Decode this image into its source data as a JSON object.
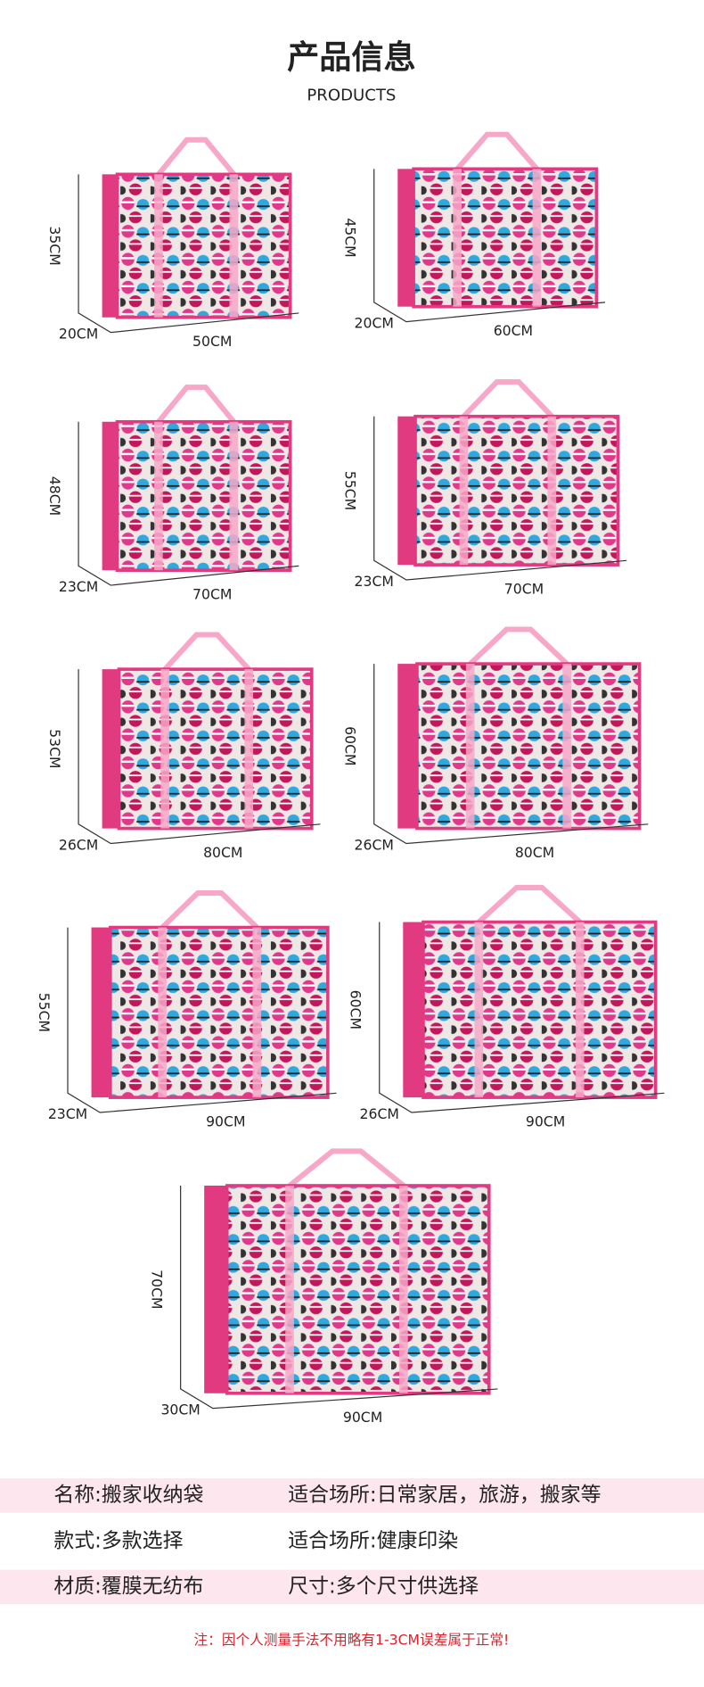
{
  "header": {
    "title": "产品信息",
    "subtitle": "PRODUCTS"
  },
  "bags": [
    {
      "height": "35CM",
      "depth": "20CM",
      "width": "50CM"
    },
    {
      "height": "45CM",
      "depth": "20CM",
      "width": "60CM"
    },
    {
      "height": "48CM",
      "depth": "23CM",
      "width": "70CM"
    },
    {
      "height": "55CM",
      "depth": "23CM",
      "width": "70CM"
    },
    {
      "height": "53CM",
      "depth": "26CM",
      "width": "80CM"
    },
    {
      "height": "60CM",
      "depth": "26CM",
      "width": "80CM"
    },
    {
      "height": "55CM",
      "depth": "23CM",
      "width": "90CM"
    },
    {
      "height": "60CM",
      "depth": "26CM",
      "width": "90CM"
    },
    {
      "height": "70CM",
      "depth": "30CM",
      "width": "90CM"
    }
  ],
  "info": [
    [
      "名称:搬家收纳袋",
      "适合场所:日常家居，旅游，搬家等"
    ],
    [
      "款式:多款选择",
      "适合场所:健康印染"
    ],
    [
      "材质:覆膜无纺布",
      "尺寸:多个尺寸供选择"
    ]
  ],
  "note": "注：因个人测量手法不用略有1-3CM误差属于正常!"
}
